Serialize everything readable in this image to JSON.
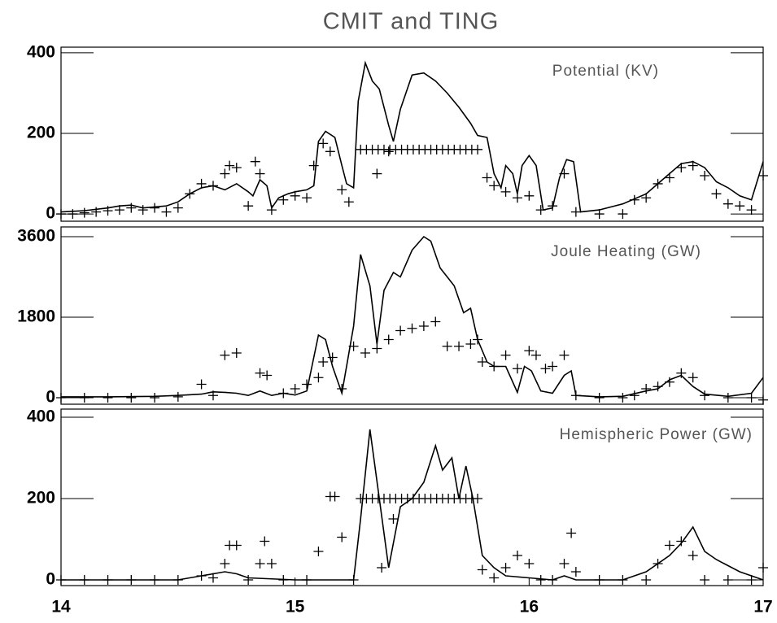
{
  "title": "CMIT and TING",
  "chart_data": [
    {
      "type": "line",
      "annotation": "Potential (KV)",
      "xlim": [
        14,
        17
      ],
      "ylim": [
        -18,
        414
      ],
      "yticks": [
        0,
        200,
        400
      ],
      "series": [
        {
          "type": "line",
          "color": "#000000",
          "x": [
            14.0,
            14.1,
            14.2,
            14.25,
            14.3,
            14.35,
            14.45,
            14.5,
            14.55,
            14.6,
            14.65,
            14.7,
            14.75,
            14.8,
            14.82,
            14.85,
            14.88,
            14.9,
            14.93,
            14.97,
            15.0,
            15.05,
            15.08,
            15.1,
            15.13,
            15.17,
            15.2,
            15.22,
            15.25,
            15.27,
            15.3,
            15.33,
            15.36,
            15.4,
            15.42,
            15.45,
            15.5,
            15.55,
            15.6,
            15.65,
            15.7,
            15.75,
            15.78,
            15.82,
            15.85,
            15.88,
            15.9,
            15.93,
            15.95,
            15.97,
            16.0,
            16.03,
            16.06,
            16.1,
            16.13,
            16.16,
            16.19,
            16.22,
            16.3,
            16.4,
            16.5,
            16.55,
            16.6,
            16.65,
            16.7,
            16.75,
            16.8,
            16.85,
            16.9,
            16.95,
            17.0
          ],
          "values": [
            5,
            8,
            15,
            20,
            22,
            15,
            20,
            30,
            50,
            65,
            70,
            60,
            75,
            55,
            45,
            85,
            70,
            15,
            40,
            50,
            55,
            60,
            70,
            180,
            205,
            190,
            120,
            75,
            65,
            280,
            375,
            330,
            310,
            220,
            180,
            260,
            345,
            350,
            330,
            300,
            265,
            225,
            195,
            190,
            100,
            65,
            120,
            100,
            50,
            120,
            145,
            120,
            10,
            15,
            90,
            135,
            130,
            5,
            10,
            25,
            50,
            75,
            100,
            125,
            130,
            115,
            80,
            65,
            45,
            35,
            130
          ]
        },
        {
          "type": "scatter",
          "marker": "+",
          "color": "#000000",
          "x": [
            14.0,
            14.05,
            14.1,
            14.15,
            14.2,
            14.25,
            14.3,
            14.35,
            14.4,
            14.45,
            14.5,
            14.55,
            14.6,
            14.65,
            14.7,
            14.72,
            14.75,
            14.8,
            14.83,
            14.85,
            14.9,
            14.95,
            15.0,
            15.05,
            15.08,
            15.12,
            15.15,
            15.2,
            15.23,
            15.28,
            15.305,
            15.33,
            15.355,
            15.38,
            15.405,
            15.43,
            15.455,
            15.48,
            15.505,
            15.53,
            15.555,
            15.58,
            15.605,
            15.63,
            15.655,
            15.68,
            15.705,
            15.73,
            15.755,
            15.78,
            15.35,
            15.4,
            15.82,
            15.85,
            15.9,
            15.95,
            16.0,
            16.05,
            16.1,
            16.15,
            16.2,
            16.3,
            16.4,
            16.45,
            16.5,
            16.55,
            16.6,
            16.65,
            16.7,
            16.75,
            16.8,
            16.85,
            16.9,
            16.95,
            17.0
          ],
          "values": [
            0,
            0,
            3,
            5,
            8,
            10,
            15,
            10,
            15,
            5,
            15,
            50,
            75,
            70,
            100,
            120,
            115,
            20,
            130,
            100,
            10,
            35,
            45,
            40,
            120,
            175,
            155,
            60,
            30,
            160,
            160,
            160,
            160,
            160,
            160,
            160,
            160,
            160,
            160,
            160,
            160,
            160,
            160,
            160,
            160,
            160,
            160,
            160,
            160,
            160,
            100,
            155,
            90,
            70,
            55,
            40,
            45,
            10,
            20,
            100,
            5,
            0,
            0,
            35,
            40,
            75,
            90,
            115,
            120,
            95,
            50,
            25,
            20,
            10,
            95
          ]
        }
      ]
    },
    {
      "type": "line",
      "annotation": "Joule Heating (GW)",
      "xlim": [
        14,
        17
      ],
      "ylim": [
        -146,
        3819
      ],
      "yticks": [
        0,
        1800,
        3600
      ],
      "series": [
        {
          "type": "line",
          "color": "#000000",
          "x": [
            14.0,
            14.2,
            14.4,
            14.5,
            14.6,
            14.65,
            14.7,
            14.75,
            14.8,
            14.85,
            14.9,
            14.95,
            15.0,
            15.05,
            15.1,
            15.13,
            15.16,
            15.2,
            15.25,
            15.28,
            15.32,
            15.35,
            15.38,
            15.42,
            15.45,
            15.5,
            15.55,
            15.58,
            15.62,
            15.65,
            15.68,
            15.72,
            15.75,
            15.78,
            15.82,
            15.85,
            15.9,
            15.95,
            15.98,
            16.01,
            16.05,
            16.1,
            16.15,
            16.18,
            16.2,
            16.3,
            16.4,
            16.5,
            16.55,
            16.6,
            16.65,
            16.7,
            16.75,
            16.85,
            16.95,
            17.0
          ],
          "values": [
            20,
            20,
            30,
            50,
            80,
            130,
            120,
            100,
            50,
            150,
            50,
            100,
            60,
            150,
            1400,
            1300,
            700,
            100,
            1600,
            3200,
            2500,
            1200,
            2400,
            2800,
            2700,
            3300,
            3600,
            3500,
            2900,
            2700,
            2500,
            1900,
            2000,
            1300,
            800,
            700,
            700,
            120,
            700,
            600,
            150,
            100,
            500,
            600,
            50,
            20,
            30,
            150,
            200,
            400,
            500,
            250,
            80,
            30,
            100,
            450
          ]
        },
        {
          "type": "scatter",
          "marker": "+",
          "color": "#000000",
          "x": [
            14.0,
            14.1,
            14.2,
            14.3,
            14.4,
            14.5,
            14.6,
            14.65,
            14.7,
            14.75,
            14.85,
            14.88,
            14.95,
            15.0,
            15.05,
            15.1,
            15.12,
            15.16,
            15.2,
            15.25,
            15.3,
            15.35,
            15.4,
            15.45,
            15.5,
            15.55,
            15.6,
            15.65,
            15.7,
            15.75,
            15.78,
            15.8,
            15.85,
            15.9,
            15.95,
            16.0,
            16.03,
            16.07,
            16.1,
            16.15,
            16.2,
            16.3,
            16.4,
            16.45,
            16.5,
            16.55,
            16.6,
            16.65,
            16.7,
            16.75,
            16.85,
            16.95,
            17.0
          ],
          "values": [
            0,
            0,
            0,
            0,
            0,
            20,
            300,
            50,
            950,
            1000,
            550,
            500,
            100,
            200,
            300,
            450,
            800,
            900,
            200,
            1150,
            1000,
            1100,
            1300,
            1500,
            1550,
            1600,
            1700,
            1150,
            1150,
            1200,
            1300,
            800,
            700,
            950,
            650,
            1050,
            950,
            650,
            700,
            950,
            50,
            0,
            0,
            50,
            200,
            250,
            350,
            550,
            450,
            50,
            0,
            0,
            -50
          ]
        }
      ]
    },
    {
      "type": "line",
      "annotation": "Hemispheric Power (GW)",
      "xlim": [
        14,
        17
      ],
      "ylim": [
        -14,
        420
      ],
      "yticks": [
        0,
        200,
        400
      ],
      "xticks": [
        14,
        15,
        16,
        17
      ],
      "series": [
        {
          "type": "line",
          "color": "#000000",
          "x": [
            14.0,
            14.5,
            14.6,
            14.7,
            14.75,
            14.8,
            15.0,
            15.15,
            15.25,
            15.28,
            15.32,
            15.36,
            15.4,
            15.45,
            15.5,
            15.55,
            15.6,
            15.63,
            15.67,
            15.7,
            15.73,
            15.76,
            15.8,
            15.85,
            15.9,
            16.0,
            16.1,
            16.15,
            16.2,
            16.4,
            16.5,
            16.6,
            16.65,
            16.7,
            16.75,
            16.8,
            16.9,
            17.0
          ],
          "values": [
            0,
            0,
            10,
            20,
            15,
            5,
            0,
            0,
            0,
            150,
            370,
            200,
            30,
            180,
            200,
            240,
            330,
            270,
            300,
            200,
            280,
            200,
            60,
            30,
            10,
            5,
            0,
            10,
            0,
            0,
            20,
            60,
            90,
            130,
            70,
            50,
            20,
            0
          ]
        },
        {
          "type": "scatter",
          "marker": "+",
          "color": "#000000",
          "x": [
            14.0,
            14.1,
            14.2,
            14.3,
            14.4,
            14.5,
            14.6,
            14.65,
            14.7,
            14.72,
            14.75,
            14.8,
            14.85,
            14.87,
            14.9,
            14.95,
            15.05,
            15.1,
            15.15,
            15.17,
            15.2,
            15.25,
            15.28,
            15.305,
            15.33,
            15.355,
            15.38,
            15.405,
            15.43,
            15.455,
            15.48,
            15.505,
            15.53,
            15.555,
            15.58,
            15.605,
            15.63,
            15.655,
            15.68,
            15.705,
            15.73,
            15.755,
            15.78,
            15.37,
            15.42,
            15.8,
            15.85,
            15.9,
            15.95,
            16.0,
            16.05,
            16.1,
            16.15,
            16.18,
            16.2,
            16.3,
            16.4,
            16.5,
            16.55,
            16.6,
            16.65,
            16.7,
            16.75,
            16.85,
            16.95,
            17.0
          ],
          "values": [
            0,
            0,
            0,
            0,
            0,
            0,
            10,
            5,
            40,
            85,
            85,
            0,
            40,
            95,
            40,
            0,
            0,
            70,
            205,
            205,
            105,
            0,
            200,
            200,
            200,
            200,
            200,
            200,
            200,
            200,
            200,
            200,
            200,
            200,
            200,
            200,
            200,
            200,
            200,
            200,
            200,
            200,
            200,
            30,
            150,
            25,
            5,
            30,
            60,
            40,
            0,
            0,
            40,
            115,
            20,
            0,
            0,
            0,
            40,
            85,
            95,
            60,
            0,
            0,
            0,
            30
          ]
        }
      ]
    }
  ]
}
